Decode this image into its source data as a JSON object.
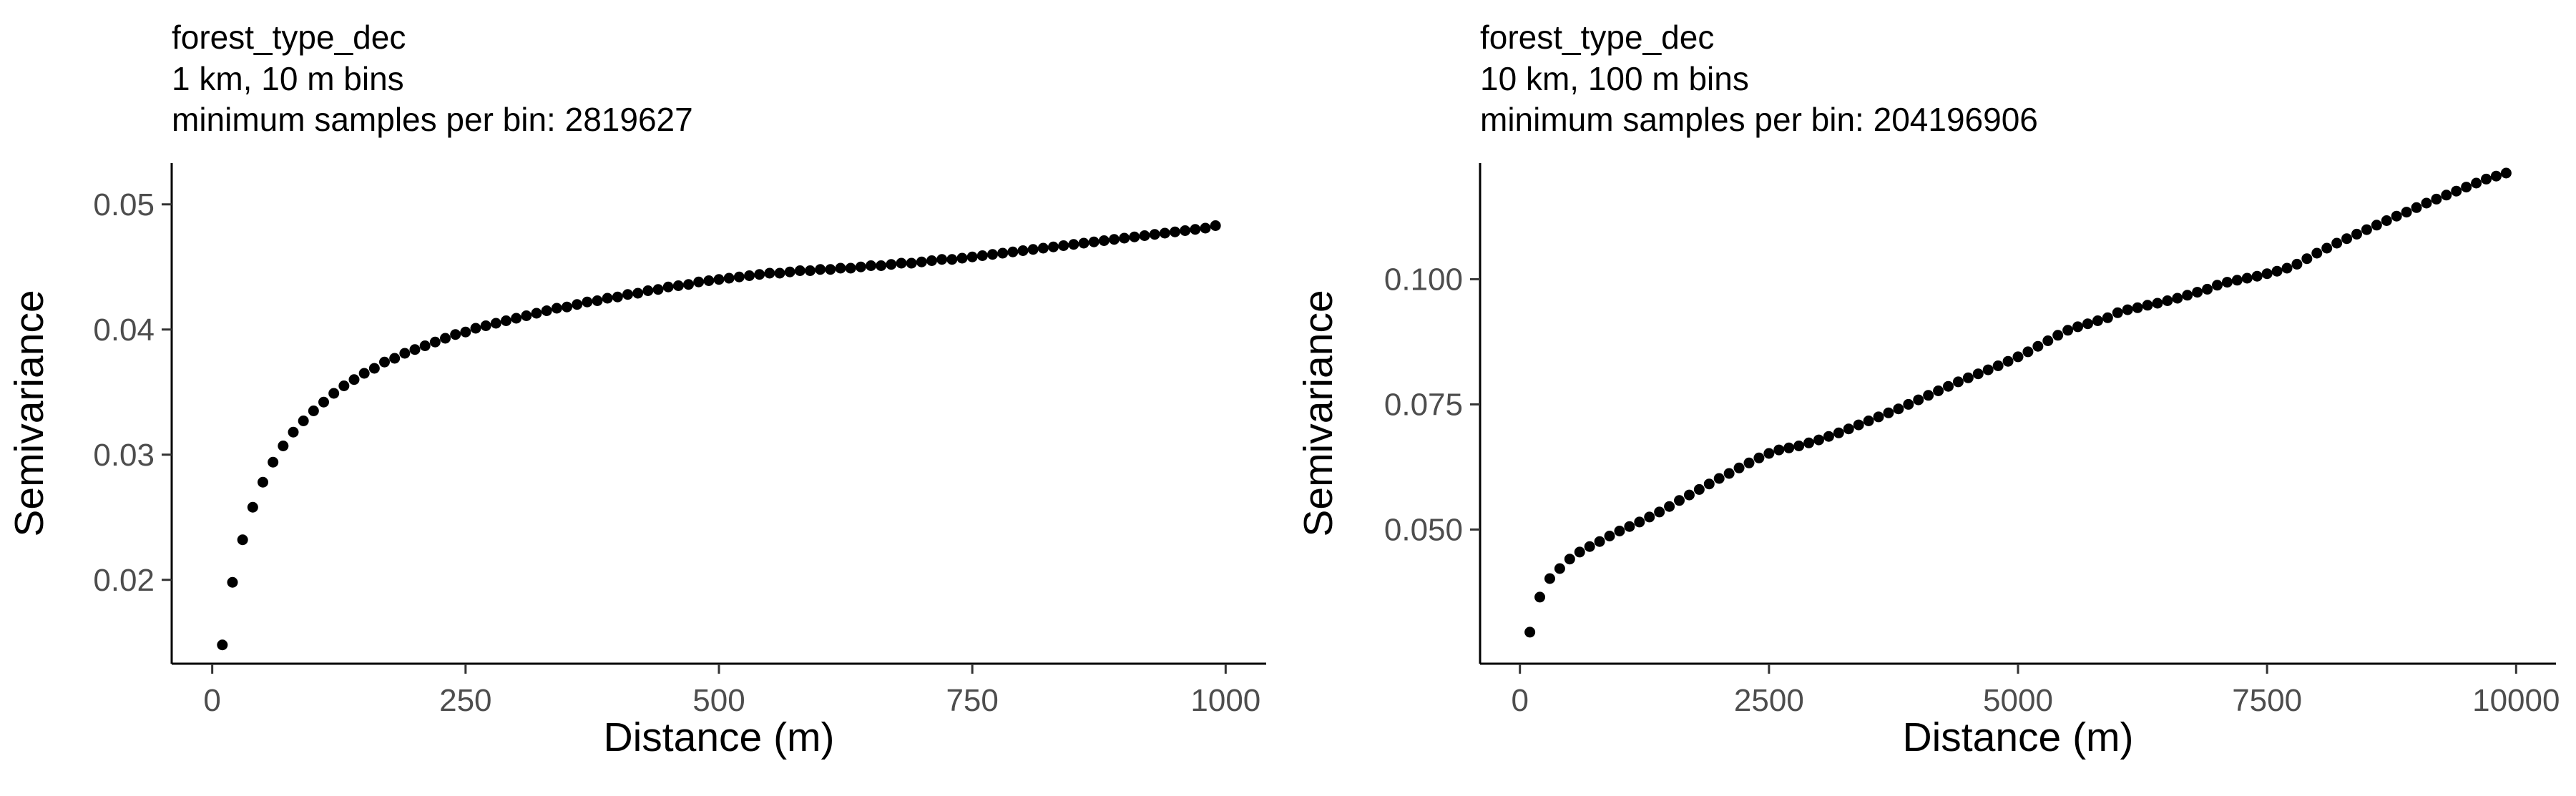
{
  "chart_data": [
    {
      "type": "scatter",
      "title": "forest_type_dec",
      "subtitle": [
        "1 km, 10 m bins",
        "minimum samples per bin: 2819627"
      ],
      "xlabel": "Distance (m)",
      "ylabel": "Semivariance",
      "xlim": [
        -40,
        1040
      ],
      "ylim": [
        0.0133,
        0.0533
      ],
      "xticks": [
        0,
        250,
        500,
        750,
        1000
      ],
      "xtick_labels": [
        "0",
        "250",
        "500",
        "750",
        "1000"
      ],
      "yticks": [
        0.02,
        0.03,
        0.04,
        0.05
      ],
      "ytick_labels": [
        "0.02",
        "0.03",
        "0.04",
        "0.05"
      ],
      "grid": false,
      "point_color": "#000000",
      "x": [
        10,
        20,
        30,
        40,
        50,
        60,
        70,
        80,
        90,
        100,
        110,
        120,
        130,
        140,
        150,
        160,
        170,
        180,
        190,
        200,
        210,
        220,
        230,
        240,
        250,
        260,
        270,
        280,
        290,
        300,
        310,
        320,
        330,
        340,
        350,
        360,
        370,
        380,
        390,
        400,
        410,
        420,
        430,
        440,
        450,
        460,
        470,
        480,
        490,
        500,
        510,
        520,
        530,
        540,
        550,
        560,
        570,
        580,
        590,
        600,
        610,
        620,
        630,
        640,
        650,
        660,
        670,
        680,
        690,
        700,
        710,
        720,
        730,
        740,
        750,
        760,
        770,
        780,
        790,
        800,
        810,
        820,
        830,
        840,
        850,
        860,
        870,
        880,
        890,
        900,
        910,
        920,
        930,
        940,
        950,
        960,
        970,
        980,
        990
      ],
      "y": [
        0.0148,
        0.0198,
        0.0232,
        0.0258,
        0.0278,
        0.0294,
        0.0307,
        0.0318,
        0.0327,
        0.0335,
        0.0342,
        0.0349,
        0.0355,
        0.036,
        0.0365,
        0.0369,
        0.0374,
        0.0377,
        0.0381,
        0.0384,
        0.0387,
        0.039,
        0.0393,
        0.0396,
        0.0398,
        0.0401,
        0.0403,
        0.0405,
        0.0407,
        0.0409,
        0.0411,
        0.0413,
        0.0415,
        0.0417,
        0.0418,
        0.042,
        0.0422,
        0.0423,
        0.0425,
        0.0426,
        0.0428,
        0.0429,
        0.0431,
        0.0432,
        0.0434,
        0.0435,
        0.0436,
        0.0438,
        0.0439,
        0.044,
        0.0441,
        0.0442,
        0.0443,
        0.0444,
        0.0445,
        0.0445,
        0.0446,
        0.0447,
        0.0447,
        0.0448,
        0.0448,
        0.0449,
        0.0449,
        0.045,
        0.0451,
        0.0451,
        0.0452,
        0.0453,
        0.0453,
        0.0454,
        0.0455,
        0.0456,
        0.0456,
        0.0457,
        0.0458,
        0.0459,
        0.046,
        0.0461,
        0.0462,
        0.0463,
        0.0464,
        0.0465,
        0.0466,
        0.0467,
        0.0468,
        0.0469,
        0.047,
        0.0471,
        0.0472,
        0.0473,
        0.0474,
        0.0475,
        0.0476,
        0.0477,
        0.0478,
        0.0479,
        0.048,
        0.0481,
        0.0483
      ]
    },
    {
      "type": "scatter",
      "title": "forest_type_dec",
      "subtitle": [
        "10 km, 100 m bins",
        "minimum samples per bin: 204196906"
      ],
      "xlabel": "Distance (m)",
      "ylabel": "Semivariance",
      "xlim": [
        -400,
        10400
      ],
      "ylim": [
        0.0232,
        0.1232
      ],
      "xticks": [
        0,
        2500,
        5000,
        7500,
        10000
      ],
      "xtick_labels": [
        "0",
        "2500",
        "5000",
        "7500",
        "10000"
      ],
      "yticks": [
        0.05,
        0.075,
        0.1
      ],
      "ytick_labels": [
        "0.050",
        "0.075",
        "0.100"
      ],
      "grid": false,
      "point_color": "#000000",
      "x": [
        100,
        200,
        300,
        400,
        500,
        600,
        700,
        800,
        900,
        1000,
        1100,
        1200,
        1300,
        1400,
        1500,
        1600,
        1700,
        1800,
        1900,
        2000,
        2100,
        2200,
        2300,
        2400,
        2500,
        2600,
        2700,
        2800,
        2900,
        3000,
        3100,
        3200,
        3300,
        3400,
        3500,
        3600,
        3700,
        3800,
        3900,
        4000,
        4100,
        4200,
        4300,
        4400,
        4500,
        4600,
        4700,
        4800,
        4900,
        5000,
        5100,
        5200,
        5300,
        5400,
        5500,
        5600,
        5700,
        5800,
        5900,
        6000,
        6100,
        6200,
        6300,
        6400,
        6500,
        6600,
        6700,
        6800,
        6900,
        7000,
        7100,
        7200,
        7300,
        7400,
        7500,
        7600,
        7700,
        7800,
        7900,
        8000,
        8100,
        8200,
        8300,
        8400,
        8500,
        8600,
        8700,
        8800,
        8900,
        9000,
        9100,
        9200,
        9300,
        9400,
        9500,
        9600,
        9700,
        9800,
        9900
      ],
      "y": [
        0.0295,
        0.0365,
        0.0402,
        0.0422,
        0.0441,
        0.0455,
        0.0466,
        0.0476,
        0.0487,
        0.0497,
        0.0506,
        0.0515,
        0.0525,
        0.0535,
        0.0546,
        0.0558,
        0.0569,
        0.058,
        0.0591,
        0.0602,
        0.0612,
        0.0623,
        0.0633,
        0.0643,
        0.0652,
        0.0659,
        0.0663,
        0.0667,
        0.0673,
        0.0679,
        0.0686,
        0.0693,
        0.0701,
        0.0709,
        0.0717,
        0.0725,
        0.0733,
        0.0741,
        0.075,
        0.0759,
        0.0768,
        0.0777,
        0.0786,
        0.0795,
        0.0803,
        0.0811,
        0.0819,
        0.0827,
        0.0836,
        0.0845,
        0.0855,
        0.0866,
        0.0877,
        0.0888,
        0.0898,
        0.0905,
        0.0911,
        0.0917,
        0.0923,
        0.0933,
        0.0939,
        0.0943,
        0.0948,
        0.0952,
        0.0957,
        0.0962,
        0.0968,
        0.0974,
        0.098,
        0.0988,
        0.0994,
        0.0998,
        0.1002,
        0.1006,
        0.1011,
        0.1016,
        0.1022,
        0.103,
        0.1041,
        0.1052,
        0.1062,
        0.1072,
        0.1081,
        0.109,
        0.1099,
        0.1108,
        0.1117,
        0.1126,
        0.1134,
        0.1143,
        0.1152,
        0.116,
        0.1168,
        0.1176,
        0.1184,
        0.1192,
        0.12,
        0.1206,
        0.1212
      ]
    }
  ]
}
